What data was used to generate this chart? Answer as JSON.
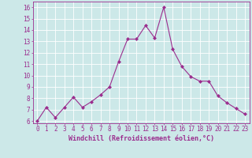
{
  "x": [
    0,
    1,
    2,
    3,
    4,
    5,
    6,
    7,
    8,
    9,
    10,
    11,
    12,
    13,
    14,
    15,
    16,
    17,
    18,
    19,
    20,
    21,
    22,
    23
  ],
  "y": [
    6.0,
    7.2,
    6.3,
    7.2,
    8.1,
    7.2,
    7.7,
    8.3,
    9.0,
    11.2,
    13.2,
    13.2,
    14.4,
    13.3,
    16.0,
    12.3,
    10.8,
    9.9,
    9.5,
    9.5,
    8.2,
    7.6,
    7.1,
    6.6
  ],
  "line_color": "#9b2d8e",
  "marker": "D",
  "marker_size": 2,
  "bg_color": "#cce8e8",
  "grid_color": "#ffffff",
  "xlabel": "Windchill (Refroidissement éolien,°C)",
  "xlabel_color": "#9b2d8e",
  "tick_color": "#9b2d8e",
  "xlim": [
    -0.5,
    23.5
  ],
  "ylim": [
    5.8,
    16.5
  ],
  "yticks": [
    6,
    7,
    8,
    9,
    10,
    11,
    12,
    13,
    14,
    15,
    16
  ],
  "xticks": [
    0,
    1,
    2,
    3,
    4,
    5,
    6,
    7,
    8,
    9,
    10,
    11,
    12,
    13,
    14,
    15,
    16,
    17,
    18,
    19,
    20,
    21,
    22,
    23
  ],
  "tick_fontsize": 5.5,
  "xlabel_fontsize": 6.0
}
